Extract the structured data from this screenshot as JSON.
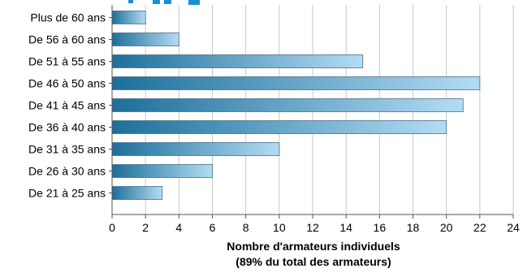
{
  "chart_data": {
    "type": "bar",
    "orientation": "horizontal",
    "title": "",
    "categories": [
      "Plus de 60 ans",
      "De 56 à 60 ans",
      "De 51 à 55 ans",
      "De 46 à 50 ans",
      "De 41 à 45 ans",
      "De 36 à 40 ans",
      "De 31 à 35 ans",
      "De 26 à 30 ans",
      "De 21 à 25 ans"
    ],
    "values": [
      2,
      4,
      15,
      22,
      21,
      20,
      10,
      6,
      3
    ],
    "xlabel_line1": "Nombre d'armateurs individuels",
    "xlabel_line2": "(89% du total des armateurs)",
    "ylabel": "",
    "xlim": [
      0,
      24
    ],
    "xticks": [
      0,
      2,
      4,
      6,
      8,
      10,
      12,
      14,
      16,
      18,
      20,
      22,
      24
    ],
    "grid": "vertical",
    "legend": "none",
    "colors": {
      "bar_dark": "#1c6f9a",
      "bar_light": "#b3dcf4",
      "bar_border": "#4a6f86",
      "grid": "#c8c8c8",
      "axis": "#555555",
      "text": "#000000",
      "title_partial": "#1a8fd0"
    }
  }
}
